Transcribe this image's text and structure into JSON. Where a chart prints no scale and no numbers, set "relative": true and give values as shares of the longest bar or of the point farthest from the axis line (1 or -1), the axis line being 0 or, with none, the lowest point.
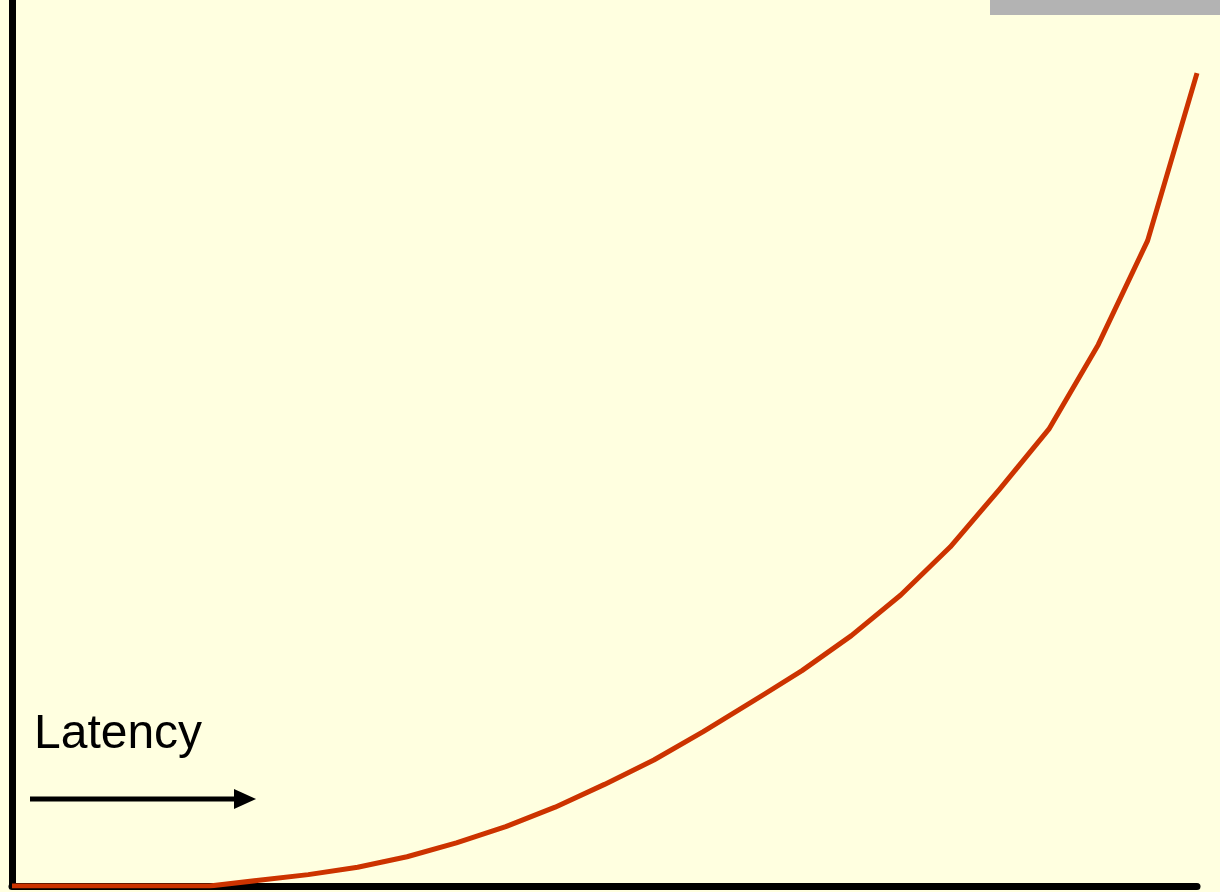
{
  "chart_data": {
    "type": "line",
    "relative": true,
    "xlabel": "Latency",
    "categories": [
      null,
      null,
      null,
      null,
      null,
      null,
      null,
      null,
      null,
      null,
      null,
      null,
      null,
      null,
      null,
      null,
      null,
      null,
      null,
      null,
      null,
      null,
      null,
      null,
      null
    ],
    "series": [
      {
        "color": "#cc3300",
        "values": [
          0,
          0,
          0,
          0,
          0,
          0.007,
          0.014,
          0.023,
          0.036,
          0.053,
          0.073,
          0.097,
          0.125,
          0.155,
          0.19,
          0.227,
          0.265,
          0.308,
          0.358,
          0.417,
          0.488,
          0.562,
          0.666,
          0.794,
          1.0
        ]
      }
    ],
    "marker": "none",
    "line_style": "solid",
    "tick_labels": false
  }
}
